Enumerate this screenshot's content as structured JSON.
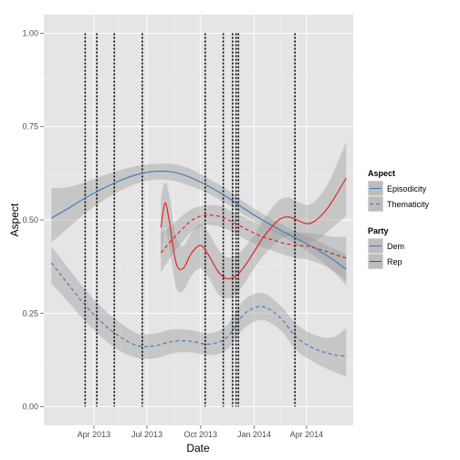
{
  "chart_data": {
    "type": "line",
    "title": "",
    "xlabel": "Date",
    "ylabel": "Aspect",
    "x_type": "date",
    "xlim": [
      "2013-01-05",
      "2014-06-20"
    ],
    "ylim": [
      -0.05,
      1.05
    ],
    "x_ticks": [
      {
        "date": "2013-04-01",
        "label": "Apr 2013"
      },
      {
        "date": "2013-07-01",
        "label": "Jul 2013"
      },
      {
        "date": "2013-10-01",
        "label": "Oct 2013"
      },
      {
        "date": "2014-01-01",
        "label": "Jan 2014"
      },
      {
        "date": "2014-04-01",
        "label": "Apr 2014"
      }
    ],
    "y_ticks": [
      {
        "value": 0.0,
        "label": "0.00"
      },
      {
        "value": 0.25,
        "label": "0.25"
      },
      {
        "value": 0.5,
        "label": "0.50"
      },
      {
        "value": 0.75,
        "label": "0.75"
      },
      {
        "value": 1.0,
        "label": "1.00"
      }
    ],
    "grid": true,
    "legend_position": "right",
    "legends": [
      {
        "title": "Aspect",
        "entries": [
          {
            "label": "Episodicity",
            "linetype": "solid"
          },
          {
            "label": "Thematicity",
            "linetype": "dashed"
          }
        ]
      },
      {
        "title": "Party",
        "entries": [
          {
            "label": "Dem",
            "color": "#3b78bf"
          },
          {
            "label": "Rep",
            "color": "#e31a1c"
          }
        ]
      }
    ],
    "event_lines": [
      "2013-03-17",
      "2013-04-06",
      "2013-05-06",
      "2013-06-23",
      "2013-10-09",
      "2013-11-09",
      "2013-11-25",
      "2013-12-01",
      "2013-12-05",
      "2014-03-12"
    ],
    "series": [
      {
        "party": "Dem",
        "aspect": "Episodicity",
        "color": "#3b78bf",
        "dash": false,
        "x": [
          "2013-01-18",
          "2013-02-15",
          "2013-03-15",
          "2013-04-15",
          "2013-05-15",
          "2013-06-15",
          "2013-07-15",
          "2013-08-15",
          "2013-09-15",
          "2013-10-15",
          "2013-11-15",
          "2013-12-15",
          "2014-01-15",
          "2014-02-15",
          "2014-03-15",
          "2014-04-15",
          "2014-05-15",
          "2014-06-08"
        ],
        "y": [
          0.505,
          0.53,
          0.557,
          0.583,
          0.605,
          0.622,
          0.63,
          0.628,
          0.613,
          0.59,
          0.562,
          0.53,
          0.5,
          0.473,
          0.45,
          0.425,
          0.395,
          0.368
        ],
        "lower": [
          0.44,
          0.477,
          0.515,
          0.55,
          0.577,
          0.598,
          0.608,
          0.605,
          0.59,
          0.57,
          0.543,
          0.513,
          0.485,
          0.458,
          0.433,
          0.403,
          0.365,
          0.325
        ],
        "upper": [
          0.585,
          0.588,
          0.6,
          0.618,
          0.633,
          0.645,
          0.65,
          0.65,
          0.636,
          0.61,
          0.582,
          0.548,
          0.517,
          0.49,
          0.468,
          0.448,
          0.425,
          0.408
        ]
      },
      {
        "party": "Dem",
        "aspect": "Thematicity",
        "color": "#3b78bf",
        "dash": true,
        "x": [
          "2013-01-18",
          "2013-02-15",
          "2013-03-15",
          "2013-04-15",
          "2013-05-15",
          "2013-06-15",
          "2013-07-15",
          "2013-08-15",
          "2013-09-15",
          "2013-10-15",
          "2013-11-15",
          "2013-12-15",
          "2014-01-15",
          "2014-02-15",
          "2014-03-15",
          "2014-04-15",
          "2014-05-15",
          "2014-06-08"
        ],
        "y": [
          0.385,
          0.33,
          0.275,
          0.225,
          0.188,
          0.163,
          0.163,
          0.175,
          0.175,
          0.167,
          0.185,
          0.248,
          0.268,
          0.238,
          0.185,
          0.155,
          0.14,
          0.135
        ],
        "lower": [
          0.33,
          0.282,
          0.232,
          0.185,
          0.15,
          0.13,
          0.13,
          0.143,
          0.145,
          0.138,
          0.152,
          0.21,
          0.232,
          0.205,
          0.15,
          0.118,
          0.095,
          0.08
        ],
        "upper": [
          0.43,
          0.373,
          0.318,
          0.265,
          0.226,
          0.196,
          0.196,
          0.207,
          0.205,
          0.196,
          0.218,
          0.286,
          0.304,
          0.271,
          0.22,
          0.192,
          0.185,
          0.21
        ]
      },
      {
        "party": "Rep",
        "aspect": "Episodicity",
        "color": "#e31a1c",
        "dash": false,
        "x": [
          "2013-07-25",
          "2013-08-01",
          "2013-08-08",
          "2013-08-20",
          "2013-09-01",
          "2013-09-15",
          "2013-10-01",
          "2013-10-15",
          "2013-11-01",
          "2013-11-15",
          "2013-12-01",
          "2013-12-15",
          "2014-01-01",
          "2014-01-15",
          "2014-02-01",
          "2014-02-15",
          "2014-03-01",
          "2014-03-15",
          "2014-04-01",
          "2014-04-15",
          "2014-05-01",
          "2014-05-15",
          "2014-06-08"
        ],
        "y": [
          0.48,
          0.545,
          0.5,
          0.385,
          0.37,
          0.41,
          0.432,
          0.405,
          0.36,
          0.343,
          0.35,
          0.375,
          0.415,
          0.45,
          0.483,
          0.503,
          0.508,
          0.5,
          0.49,
          0.497,
          0.52,
          0.55,
          0.612
        ],
        "lower": [
          0.4,
          0.48,
          0.43,
          0.32,
          0.31,
          0.35,
          0.37,
          0.345,
          0.3,
          0.29,
          0.3,
          0.33,
          0.37,
          0.4,
          0.43,
          0.45,
          0.455,
          0.45,
          0.44,
          0.445,
          0.46,
          0.48,
          0.51
        ],
        "upper": [
          0.56,
          0.6,
          0.57,
          0.455,
          0.43,
          0.465,
          0.49,
          0.465,
          0.42,
          0.4,
          0.405,
          0.425,
          0.46,
          0.495,
          0.533,
          0.555,
          0.56,
          0.55,
          0.54,
          0.55,
          0.58,
          0.62,
          0.71
        ]
      },
      {
        "party": "Rep",
        "aspect": "Thematicity",
        "color": "#e31a1c",
        "dash": true,
        "x": [
          "2013-07-25",
          "2013-08-15",
          "2013-09-01",
          "2013-09-15",
          "2013-10-01",
          "2013-10-15",
          "2013-11-01",
          "2013-11-15",
          "2013-12-01",
          "2013-12-15",
          "2014-01-01",
          "2014-01-15",
          "2014-02-01",
          "2014-02-15",
          "2014-03-01",
          "2014-03-15",
          "2014-04-01",
          "2014-04-15",
          "2014-05-01",
          "2014-05-15",
          "2014-06-08"
        ],
        "y": [
          0.412,
          0.45,
          0.478,
          0.498,
          0.51,
          0.513,
          0.51,
          0.502,
          0.49,
          0.478,
          0.465,
          0.455,
          0.447,
          0.44,
          0.435,
          0.432,
          0.43,
          0.425,
          0.418,
          0.41,
          0.398
        ],
        "lower": [
          0.36,
          0.41,
          0.443,
          0.468,
          0.483,
          0.487,
          0.483,
          0.475,
          0.462,
          0.45,
          0.437,
          0.427,
          0.418,
          0.41,
          0.403,
          0.398,
          0.395,
          0.388,
          0.378,
          0.365,
          0.34
        ],
        "upper": [
          0.465,
          0.49,
          0.513,
          0.528,
          0.537,
          0.54,
          0.538,
          0.53,
          0.518,
          0.507,
          0.495,
          0.485,
          0.477,
          0.47,
          0.468,
          0.467,
          0.466,
          0.463,
          0.46,
          0.455,
          0.455
        ]
      }
    ]
  }
}
